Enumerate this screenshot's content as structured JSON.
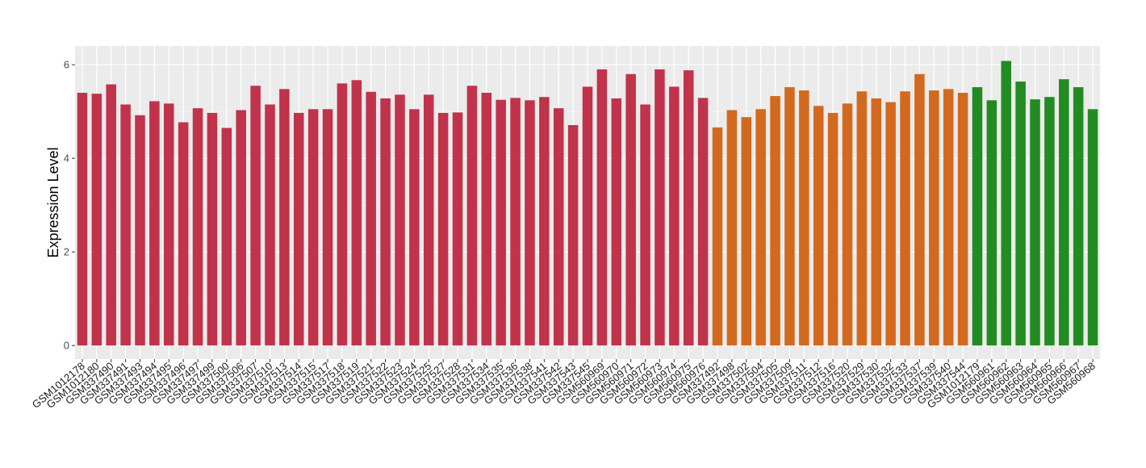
{
  "chart_data": {
    "type": "bar",
    "y_label": "Expression Level",
    "ylim": [
      -0.29,
      6.4
    ],
    "yticks": [
      0,
      2,
      4,
      6
    ],
    "grid": true,
    "series": [
      {
        "color": "#c0334b",
        "categories": [
          "GSM1012178",
          "GSM1012180",
          "GSM337490",
          "GSM337491",
          "GSM337493",
          "GSM337494",
          "GSM337495",
          "GSM337496",
          "GSM337497",
          "GSM337499",
          "GSM337500",
          "GSM337506",
          "GSM337507",
          "GSM337510",
          "GSM337513",
          "GSM337514",
          "GSM337515",
          "GSM337517",
          "GSM337518",
          "GSM337519",
          "GSM337521",
          "GSM337522",
          "GSM337523",
          "GSM337524",
          "GSM337525",
          "GSM337527",
          "GSM337528",
          "GSM337531",
          "GSM337534",
          "GSM337535",
          "GSM337536",
          "GSM337538",
          "GSM337541",
          "GSM337542",
          "GSM337543",
          "GSM337545",
          "GSM560969",
          "GSM560970",
          "GSM560971",
          "GSM560972",
          "GSM560973",
          "GSM560974",
          "GSM560975",
          "GSM560976"
        ],
        "values": [
          5.4,
          5.38,
          5.58,
          5.15,
          4.92,
          5.22,
          5.17,
          4.77,
          5.07,
          4.97,
          4.65,
          5.03,
          5.55,
          5.15,
          5.48,
          4.97,
          5.05,
          5.05,
          5.6,
          5.67,
          5.42,
          5.28,
          5.36,
          5.05,
          5.36,
          4.97,
          4.98,
          5.55,
          5.4,
          5.25,
          5.29,
          5.24,
          5.31,
          5.07,
          4.71,
          5.53,
          5.9,
          5.28,
          5.8,
          5.15,
          5.9,
          5.53,
          5.88,
          5.29
        ]
      },
      {
        "color": "#d2691e",
        "categories": [
          "GSM337492",
          "GSM337498",
          "GSM337502",
          "GSM337504",
          "GSM337505",
          "GSM337509",
          "GSM337511",
          "GSM337512",
          "GSM337516",
          "GSM337520",
          "GSM337529",
          "GSM337530",
          "GSM337532",
          "GSM337533",
          "GSM337537",
          "GSM337539",
          "GSM337540",
          "GSM337544"
        ],
        "values": [
          4.66,
          5.03,
          4.88,
          5.05,
          5.33,
          5.52,
          5.45,
          5.12,
          4.97,
          5.17,
          5.43,
          5.28,
          5.2,
          5.43,
          5.8,
          5.45,
          5.48,
          5.4
        ]
      },
      {
        "color": "#228b22",
        "categories": [
          "GSM1012179",
          "GSM560961",
          "GSM560962",
          "GSM560963",
          "GSM560964",
          "GSM560965",
          "GSM560966",
          "GSM560967",
          "GSM560968"
        ],
        "values": [
          5.52,
          5.24,
          6.08,
          5.64,
          5.26,
          5.31,
          5.69,
          5.52,
          5.05
        ]
      }
    ]
  }
}
